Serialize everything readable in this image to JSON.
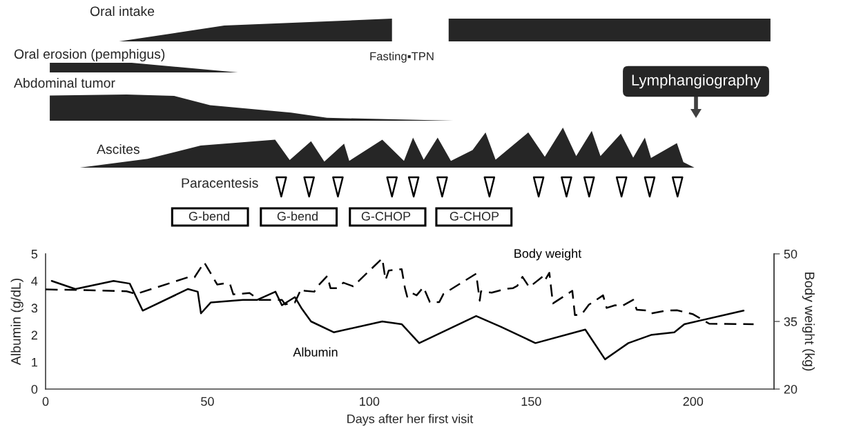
{
  "chart_data": [
    {
      "type": "other",
      "annotations": [
        "Oral intake",
        "Fasting▪TPN",
        "Oral erosion (pemphigus)",
        "Abdominal tumor",
        "Lymphangiography",
        "Ascites",
        "Paracentesis",
        "G-bend",
        "G-bend",
        "G-CHOP",
        "G-CHOP"
      ]
    },
    {
      "type": "line",
      "xlabel": "Days after her first visit",
      "ylabel": "Albumin (g/dL)",
      "y2label": "Body weight (kg)",
      "xlim": [
        0,
        225
      ],
      "xticks": [
        0,
        50,
        100,
        150,
        200
      ],
      "ylim": [
        0,
        5
      ],
      "yticks": [
        0,
        1,
        2,
        3,
        4,
        5
      ],
      "y2lim": [
        20,
        50
      ],
      "y2ticks": [
        20,
        35,
        50
      ],
      "series": [
        {
          "name": "Albumin",
          "color": "#000000",
          "line_style": "solid",
          "x": [
            1.9,
            9.2,
            21,
            26,
            30,
            44,
            47,
            48,
            51,
            61,
            65.4,
            71,
            73,
            77,
            79,
            82,
            89,
            104,
            110,
            115.4,
            133,
            140.7,
            151.3,
            166.7,
            172.8,
            180,
            187,
            194.2,
            197.3,
            215.6
          ],
          "values": [
            4.0,
            3.7,
            4.0,
            3.9,
            2.9,
            3.7,
            3.6,
            2.8,
            3.2,
            3.3,
            3.3,
            3.6,
            3.1,
            3.4,
            3.0,
            2.5,
            2.1,
            2.5,
            2.4,
            1.7,
            2.7,
            2.3,
            1.7,
            2.2,
            1.1,
            1.7,
            2.0,
            2.1,
            2.4,
            2.9
          ]
        },
        {
          "name": "Body weight",
          "axis": "y2",
          "color": "#000000",
          "line_style": "dashed",
          "x": [
            0,
            9.2,
            25,
            28,
            44,
            46,
            49,
            51,
            53,
            56,
            57,
            58,
            63,
            66,
            73,
            74,
            77,
            79,
            80,
            83,
            84,
            87,
            88,
            90,
            92,
            95,
            104,
            105,
            106,
            110,
            111,
            111.7,
            112.9,
            114.6,
            116.7,
            118.7,
            121.6,
            122.9,
            133,
            134.1,
            134.5,
            137.8,
            142,
            144.4,
            145.7,
            147.3,
            149.4,
            153.6,
            154.2,
            155.6,
            156.7,
            162.7,
            163.5,
            165.6,
            167.8,
            172.2,
            173.3,
            175.9,
            178,
            181.5,
            182.6,
            186.3,
            187.1,
            191.7,
            195,
            200,
            205,
            218.7
          ],
          "values": [
            42.1,
            42.0,
            41.7,
            41.1,
            44.8,
            44.8,
            48.1,
            45.7,
            43.2,
            43.5,
            43.2,
            41.0,
            41.3,
            39.8,
            39.8,
            38.8,
            39.2,
            42.3,
            41.8,
            41.6,
            42.8,
            45.1,
            42.4,
            42.4,
            43.6,
            42.8,
            49.0,
            44.2,
            46.3,
            46.6,
            42.4,
            40.5,
            41.4,
            40.8,
            42.6,
            39.3,
            39.3,
            41.1,
            45.6,
            39.6,
            41.7,
            41.4,
            42.2,
            42.4,
            42.9,
            44.9,
            42.6,
            45.0,
            44.1,
            45.8,
            39.0,
            41.8,
            36.4,
            36.6,
            38.7,
            40.8,
            38.0,
            38.6,
            38.4,
            39.8,
            37.6,
            37.4,
            36.8,
            37.4,
            37.5,
            36.6,
            34.5,
            34.4
          ]
        }
      ]
    }
  ]
}
